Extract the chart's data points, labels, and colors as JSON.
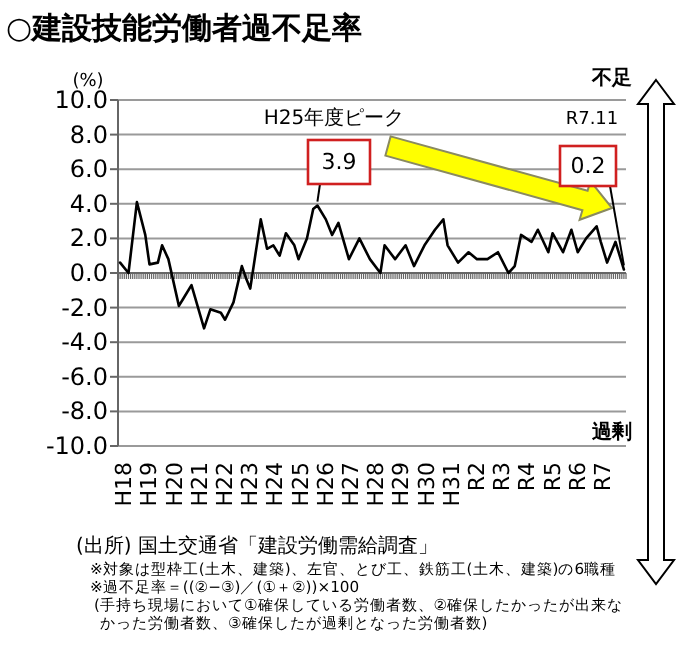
{
  "chart_data": {
    "type": "line",
    "title": "○建設技能労働者過不足率",
    "ylabel": "(%)",
    "x": [
      "2005-11",
      "2006-03",
      "2006-07",
      "2006-11",
      "2007-01",
      "2007-05",
      "2007-07",
      "2007-10",
      "2008-03",
      "2008-05",
      "2008-09",
      "2009-03",
      "2009-06",
      "2009-11",
      "2010-01",
      "2010-05",
      "2010-09",
      "2010-11",
      "2011-01",
      "2011-06",
      "2011-09",
      "2011-12",
      "2012-03",
      "2012-06",
      "2012-10",
      "2012-12",
      "2013-04",
      "2013-07",
      "2013-09",
      "2014-01",
      "2014-04",
      "2014-07",
      "2014-12",
      "2015-05",
      "2015-10",
      "2016-03",
      "2016-05",
      "2016-10",
      "2017-03",
      "2017-07",
      "2017-12",
      "2018-05",
      "2018-09",
      "2018-11",
      "2019-04",
      "2019-09",
      "2020-01",
      "2020-06",
      "2020-11",
      "2021-04",
      "2021-07",
      "2021-10",
      "2022-03",
      "2022-06",
      "2022-11",
      "2023-01",
      "2023-06",
      "2023-10",
      "2024-01",
      "2024-05",
      "2024-10",
      "2024-12",
      "2025-03",
      "2025-07",
      "2025-11"
    ],
    "series": [
      {
        "color": "#000000",
        "values": [
          0.6,
          0.0,
          4.1,
          2.2,
          0.5,
          0.6,
          1.6,
          0.8,
          -1.9,
          -1.5,
          -0.7,
          -3.2,
          -2.1,
          -2.3,
          -2.7,
          -1.7,
          0.4,
          -0.3,
          -0.9,
          3.1,
          1.4,
          1.6,
          1.0,
          2.3,
          1.6,
          0.8,
          2.0,
          3.7,
          3.9,
          3.1,
          2.2,
          2.9,
          0.8,
          2.0,
          0.8,
          0.0,
          1.6,
          0.8,
          1.6,
          0.4,
          1.6,
          2.5,
          3.1,
          1.6,
          0.6,
          1.2,
          0.8,
          0.8,
          1.2,
          0.0,
          0.4,
          2.2,
          1.8,
          2.5,
          1.2,
          2.3,
          1.2,
          2.5,
          1.2,
          2.0,
          2.7,
          1.8,
          0.6,
          1.8,
          0.2
        ]
      }
    ],
    "xlim": [
      "2005-10",
      "2025-12"
    ],
    "xticks": [
      {
        "value": "2006-01",
        "label": "H18"
      },
      {
        "value": "2007-01",
        "label": "H19"
      },
      {
        "value": "2008-01",
        "label": "H20"
      },
      {
        "value": "2009-01",
        "label": "H21"
      },
      {
        "value": "2010-01",
        "label": "H22"
      },
      {
        "value": "2011-01",
        "label": "H23"
      },
      {
        "value": "2012-01",
        "label": "H24"
      },
      {
        "value": "2013-01",
        "label": "H25"
      },
      {
        "value": "2014-01",
        "label": "H26"
      },
      {
        "value": "2015-01",
        "label": "H27"
      },
      {
        "value": "2016-01",
        "label": "H28"
      },
      {
        "value": "2017-01",
        "label": "H29"
      },
      {
        "value": "2018-01",
        "label": "H30"
      },
      {
        "value": "2019-01",
        "label": "H31"
      },
      {
        "value": "2020-01",
        "label": "R2"
      },
      {
        "value": "2021-01",
        "label": "R3"
      },
      {
        "value": "2022-01",
        "label": "R4"
      },
      {
        "value": "2023-01",
        "label": "R5"
      },
      {
        "value": "2024-01",
        "label": "R6"
      },
      {
        "value": "2025-01",
        "label": "R7"
      }
    ],
    "ylim": [
      -10,
      10
    ],
    "yticks": [
      {
        "value": -10,
        "label": "-10.0"
      },
      {
        "value": -8,
        "label": "-8.0"
      },
      {
        "value": -6,
        "label": "-6.0"
      },
      {
        "value": -4,
        "label": "-4.0"
      },
      {
        "value": -2,
        "label": "-2.0"
      },
      {
        "value": 0,
        "label": "0.0"
      },
      {
        "value": 2,
        "label": "2.0"
      },
      {
        "value": 4,
        "label": "4.0"
      },
      {
        "value": 6,
        "label": "6.0"
      },
      {
        "value": 8,
        "label": "8.0"
      },
      {
        "value": 10,
        "label": "10.0"
      }
    ],
    "grid": "y",
    "line_style": "solid",
    "annotations": [
      "H25年度ピーク",
      {
        "text": "3.9",
        "x": "2013-09",
        "y": 3.9
      },
      "R7.11",
      {
        "text": "0.2",
        "x": "2025-11",
        "y": 0.2
      },
      "不足",
      "過剰",
      "(出所) 国土交通省「建設労働需給調査」",
      "※対象は型枠工(土木、建築)、左官、とび工、鉄筋工(土木、建築)の6職種",
      "※過不足率＝((②−③)／(①＋②))×100",
      "(手持ち現場において①確保している労働者数、②確保したかったが出来な",
      "かった労働者数、③確保したが過剰となった労働者数)"
    ]
  }
}
